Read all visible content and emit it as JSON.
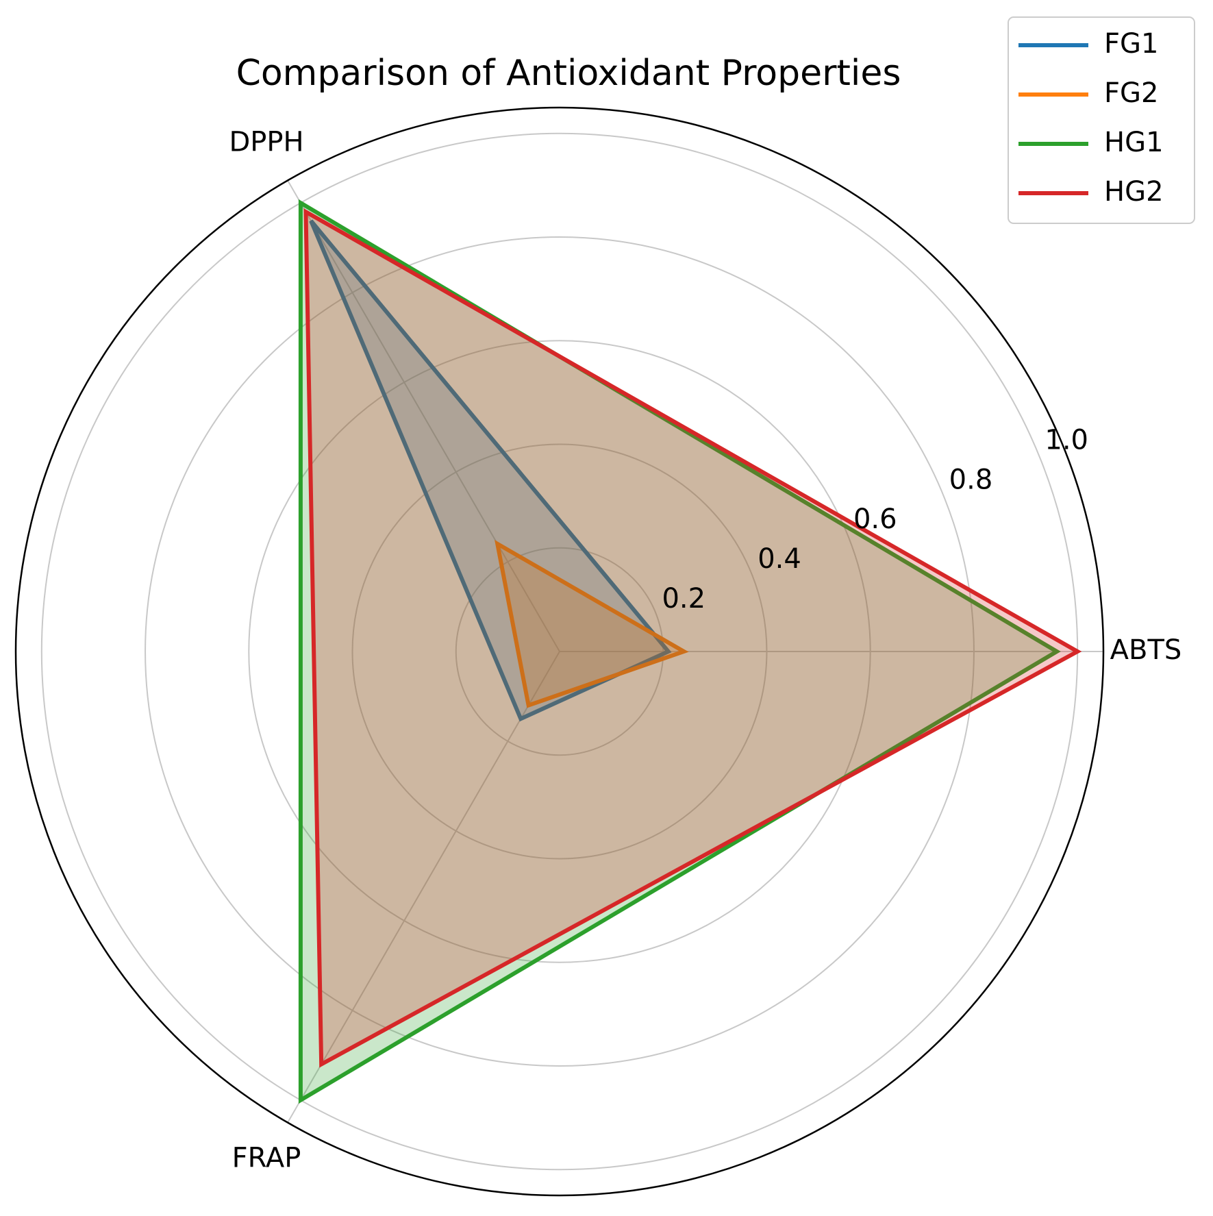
{
  "chart_data": {
    "type": "radar",
    "title": "Comparison of Antioxidant Properties",
    "categories": [
      "ABTS",
      "DPPH",
      "FRAP"
    ],
    "series": [
      {
        "name": "FG1",
        "color": "#1f77b4",
        "values": [
          0.21,
          0.96,
          0.15
        ]
      },
      {
        "name": "FG2",
        "color": "#ff7f0e",
        "values": [
          0.24,
          0.24,
          0.12
        ]
      },
      {
        "name": "HG1",
        "color": "#2ca02c",
        "values": [
          0.96,
          1.0,
          1.0
        ]
      },
      {
        "name": "HG2",
        "color": "#d62728",
        "values": [
          1.0,
          0.98,
          0.92
        ]
      }
    ],
    "ylim": [
      0,
      1.05
    ],
    "yticks": [
      0.2,
      0.4,
      0.6,
      0.8,
      {
        "value": 1,
        "label": "1.0"
      }
    ],
    "grid": true,
    "legend": "upper right"
  }
}
